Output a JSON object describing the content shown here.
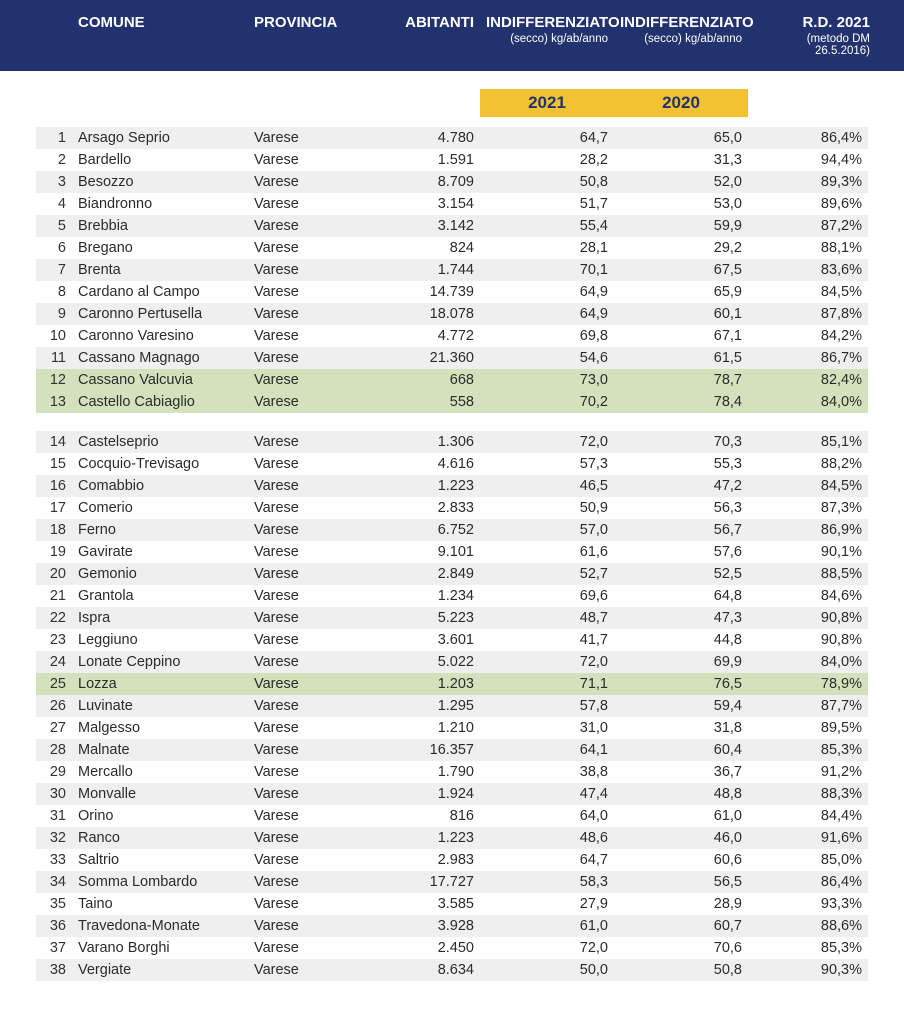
{
  "colors": {
    "header_bg": "#22326e",
    "header_fg": "#ffffff",
    "year_badge_bg": "#f2c232",
    "year_badge_fg": "#22326e",
    "row_stripe_bg": "#efefef",
    "row_highlight_bg": "#d3e2bd",
    "text": "#2b2b2b",
    "page_bg": "#ffffff"
  },
  "typography": {
    "font_family": "Myriad Pro / Segoe UI / Helvetica",
    "header_main_size_pt": 11,
    "header_sub_size_pt": 8,
    "year_badge_size_pt": 13,
    "body_size_pt": 11
  },
  "header": {
    "comune": "COMUNE",
    "provincia": "PROVINCIA",
    "abitanti": "ABITANTI",
    "indiff21": "INDIFFERENZIATO",
    "indiff21_sub": "(secco)  kg/ab/anno",
    "indiff20": "INDIFFERENZIATO",
    "indiff20_sub": "(secco)  kg/ab/anno",
    "rd": "R.D. 2021",
    "rd_sub": "(metodo DM 26.5.2016)"
  },
  "years": {
    "y2021": "2021",
    "y2020": "2020"
  },
  "table": {
    "type": "table",
    "columns": [
      "#",
      "COMUNE",
      "PROVINCIA",
      "ABITANTI",
      "INDIFF_2021",
      "INDIFF_2020",
      "RD_2021"
    ],
    "column_align": [
      "right",
      "left",
      "left",
      "right",
      "right",
      "right",
      "right"
    ],
    "groups": [
      {
        "rows": [
          {
            "n": "1",
            "comune": "Arsago Seprio",
            "provincia": "Varese",
            "abitanti": "4.780",
            "i21": "64,7",
            "i20": "65,0",
            "rd": "86,4%",
            "hl": false
          },
          {
            "n": "2",
            "comune": "Bardello",
            "provincia": "Varese",
            "abitanti": "1.591",
            "i21": "28,2",
            "i20": "31,3",
            "rd": "94,4%",
            "hl": false
          },
          {
            "n": "3",
            "comune": "Besozzo",
            "provincia": "Varese",
            "abitanti": "8.709",
            "i21": "50,8",
            "i20": "52,0",
            "rd": "89,3%",
            "hl": false
          },
          {
            "n": "4",
            "comune": "Biandronno",
            "provincia": "Varese",
            "abitanti": "3.154",
            "i21": "51,7",
            "i20": "53,0",
            "rd": "89,6%",
            "hl": false
          },
          {
            "n": "5",
            "comune": "Brebbia",
            "provincia": "Varese",
            "abitanti": "3.142",
            "i21": "55,4",
            "i20": "59,9",
            "rd": "87,2%",
            "hl": false
          },
          {
            "n": "6",
            "comune": "Bregano",
            "provincia": "Varese",
            "abitanti": "824",
            "i21": "28,1",
            "i20": "29,2",
            "rd": "88,1%",
            "hl": false
          },
          {
            "n": "7",
            "comune": "Brenta",
            "provincia": "Varese",
            "abitanti": "1.744",
            "i21": "70,1",
            "i20": "67,5",
            "rd": "83,6%",
            "hl": false
          },
          {
            "n": "8",
            "comune": "Cardano al Campo",
            "provincia": "Varese",
            "abitanti": "14.739",
            "i21": "64,9",
            "i20": "65,9",
            "rd": "84,5%",
            "hl": false
          },
          {
            "n": "9",
            "comune": "Caronno Pertusella",
            "provincia": "Varese",
            "abitanti": "18.078",
            "i21": "64,9",
            "i20": "60,1",
            "rd": "87,8%",
            "hl": false
          },
          {
            "n": "10",
            "comune": "Caronno Varesino",
            "provincia": "Varese",
            "abitanti": "4.772",
            "i21": "69,8",
            "i20": "67,1",
            "rd": "84,2%",
            "hl": false
          },
          {
            "n": "11",
            "comune": "Cassano Magnago",
            "provincia": "Varese",
            "abitanti": "21.360",
            "i21": "54,6",
            "i20": "61,5",
            "rd": "86,7%",
            "hl": false
          },
          {
            "n": "12",
            "comune": "Cassano Valcuvia",
            "provincia": "Varese",
            "abitanti": "668",
            "i21": "73,0",
            "i20": "78,7",
            "rd": "82,4%",
            "hl": true
          },
          {
            "n": "13",
            "comune": "Castello Cabiaglio",
            "provincia": "Varese",
            "abitanti": "558",
            "i21": "70,2",
            "i20": "78,4",
            "rd": "84,0%",
            "hl": true
          }
        ]
      },
      {
        "rows": [
          {
            "n": "14",
            "comune": "Castelseprio",
            "provincia": "Varese",
            "abitanti": "1.306",
            "i21": "72,0",
            "i20": "70,3",
            "rd": "85,1%",
            "hl": false
          },
          {
            "n": "15",
            "comune": "Cocquio-Trevisago",
            "provincia": "Varese",
            "abitanti": "4.616",
            "i21": "57,3",
            "i20": "55,3",
            "rd": "88,2%",
            "hl": false
          },
          {
            "n": "16",
            "comune": "Comabbio",
            "provincia": "Varese",
            "abitanti": "1.223",
            "i21": "46,5",
            "i20": "47,2",
            "rd": "84,5%",
            "hl": false
          },
          {
            "n": "17",
            "comune": "Comerio",
            "provincia": "Varese",
            "abitanti": "2.833",
            "i21": "50,9",
            "i20": "56,3",
            "rd": "87,3%",
            "hl": false
          },
          {
            "n": "18",
            "comune": "Ferno",
            "provincia": "Varese",
            "abitanti": "6.752",
            "i21": "57,0",
            "i20": "56,7",
            "rd": "86,9%",
            "hl": false
          },
          {
            "n": "19",
            "comune": "Gavirate",
            "provincia": "Varese",
            "abitanti": "9.101",
            "i21": "61,6",
            "i20": "57,6",
            "rd": "90,1%",
            "hl": false
          },
          {
            "n": "20",
            "comune": "Gemonio",
            "provincia": "Varese",
            "abitanti": "2.849",
            "i21": "52,7",
            "i20": "52,5",
            "rd": "88,5%",
            "hl": false
          },
          {
            "n": "21",
            "comune": "Grantola",
            "provincia": "Varese",
            "abitanti": "1.234",
            "i21": "69,6",
            "i20": "64,8",
            "rd": "84,6%",
            "hl": false
          },
          {
            "n": "22",
            "comune": "Ispra",
            "provincia": "Varese",
            "abitanti": "5.223",
            "i21": "48,7",
            "i20": "47,3",
            "rd": "90,8%",
            "hl": false
          },
          {
            "n": "23",
            "comune": "Leggiuno",
            "provincia": "Varese",
            "abitanti": "3.601",
            "i21": "41,7",
            "i20": "44,8",
            "rd": "90,8%",
            "hl": false
          },
          {
            "n": "24",
            "comune": "Lonate Ceppino",
            "provincia": "Varese",
            "abitanti": "5.022",
            "i21": "72,0",
            "i20": "69,9",
            "rd": "84,0%",
            "hl": false
          },
          {
            "n": "25",
            "comune": "Lozza",
            "provincia": "Varese",
            "abitanti": "1.203",
            "i21": "71,1",
            "i20": "76,5",
            "rd": "78,9%",
            "hl": true
          },
          {
            "n": "26",
            "comune": "Luvinate",
            "provincia": "Varese",
            "abitanti": "1.295",
            "i21": "57,8",
            "i20": "59,4",
            "rd": "87,7%",
            "hl": false
          },
          {
            "n": "27",
            "comune": "Malgesso",
            "provincia": "Varese",
            "abitanti": "1.210",
            "i21": "31,0",
            "i20": "31,8",
            "rd": "89,5%",
            "hl": false
          },
          {
            "n": "28",
            "comune": "Malnate",
            "provincia": "Varese",
            "abitanti": "16.357",
            "i21": "64,1",
            "i20": "60,4",
            "rd": "85,3%",
            "hl": false
          },
          {
            "n": "29",
            "comune": "Mercallo",
            "provincia": "Varese",
            "abitanti": "1.790",
            "i21": "38,8",
            "i20": "36,7",
            "rd": "91,2%",
            "hl": false
          },
          {
            "n": "30",
            "comune": "Monvalle",
            "provincia": "Varese",
            "abitanti": "1.924",
            "i21": "47,4",
            "i20": "48,8",
            "rd": "88,3%",
            "hl": false
          },
          {
            "n": "31",
            "comune": "Orino",
            "provincia": "Varese",
            "abitanti": "816",
            "i21": "64,0",
            "i20": "61,0",
            "rd": "84,4%",
            "hl": false
          },
          {
            "n": "32",
            "comune": "Ranco",
            "provincia": "Varese",
            "abitanti": "1.223",
            "i21": "48,6",
            "i20": "46,0",
            "rd": "91,6%",
            "hl": false
          },
          {
            "n": "33",
            "comune": "Saltrio",
            "provincia": "Varese",
            "abitanti": "2.983",
            "i21": "64,7",
            "i20": "60,6",
            "rd": "85,0%",
            "hl": false
          },
          {
            "n": "34",
            "comune": "Somma Lombardo",
            "provincia": "Varese",
            "abitanti": "17.727",
            "i21": "58,3",
            "i20": "56,5",
            "rd": "86,4%",
            "hl": false
          },
          {
            "n": "35",
            "comune": "Taino",
            "provincia": "Varese",
            "abitanti": "3.585",
            "i21": "27,9",
            "i20": "28,9",
            "rd": "93,3%",
            "hl": false
          },
          {
            "n": "36",
            "comune": "Travedona-Monate",
            "provincia": "Varese",
            "abitanti": "3.928",
            "i21": "61,0",
            "i20": "60,7",
            "rd": "88,6%",
            "hl": false
          },
          {
            "n": "37",
            "comune": "Varano Borghi",
            "provincia": "Varese",
            "abitanti": "2.450",
            "i21": "72,0",
            "i20": "70,6",
            "rd": "85,3%",
            "hl": false
          },
          {
            "n": "38",
            "comune": "Vergiate",
            "provincia": "Varese",
            "abitanti": "8.634",
            "i21": "50,0",
            "i20": "50,8",
            "rd": "90,3%",
            "hl": false
          }
        ]
      }
    ]
  }
}
